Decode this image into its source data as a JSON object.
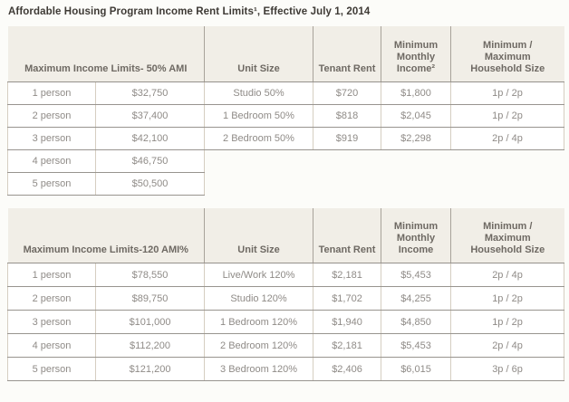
{
  "page_title": "Affordable Housing Program Income Rent Limits¹, Effective July 1, 2014",
  "colors": {
    "page_background": "#fcfcf9",
    "header_cell_background": "#f1eee7",
    "header_text": "#6e6963",
    "cell_text": "#8f8b87",
    "title_text": "#3e3a35",
    "horizontal_border": "#98948f",
    "vertical_border": "#d5cec1"
  },
  "tables": [
    {
      "name": "50-ami",
      "headers": {
        "income_limits": "Maximum Income Limits- 50% AMI",
        "unit_size": "Unit Size",
        "tenant_rent": "Tenant Rent",
        "min_monthly_income": "Minimum Monthly Income²",
        "household_size": "Minimum / Maximum Household Size"
      },
      "rows": [
        [
          "1 person",
          "$32,750",
          "Studio 50%",
          "$720",
          "$1,800",
          "1p / 2p"
        ],
        [
          "2 person",
          "$37,400",
          "1 Bedroom 50%",
          "$818",
          "$2,045",
          "1p / 2p"
        ],
        [
          "3 person",
          "$42,100",
          "2 Bedroom 50%",
          "$919",
          "$2,298",
          "2p / 4p"
        ],
        [
          "4 person",
          "$46,750",
          "",
          "",
          "",
          ""
        ],
        [
          "5 person",
          "$50,500",
          "",
          "",
          "",
          ""
        ]
      ]
    },
    {
      "name": "120-ami",
      "headers": {
        "income_limits": "Maximum Income Limits-120 AMI%",
        "unit_size": "Unit Size",
        "tenant_rent": "Tenant Rent",
        "min_monthly_income": "Minimum Monthly Income",
        "household_size": "Minimum / Maximum Household Size"
      },
      "rows": [
        [
          "1 person",
          "$78,550",
          "Live/Work 120%",
          "$2,181",
          "$5,453",
          "2p / 4p"
        ],
        [
          "2 person",
          "$89,750",
          "Studio 120%",
          "$1,702",
          "$4,255",
          "1p / 2p"
        ],
        [
          "3 person",
          "$101,000",
          "1 Bedroom 120%",
          "$1,940",
          "$4,850",
          "1p / 2p"
        ],
        [
          "4 person",
          "$112,200",
          "2 Bedroom 120%",
          "$2,181",
          "$5,453",
          "2p / 4p"
        ],
        [
          "5 person",
          "$121,200",
          "3 Bedroom 120%",
          "$2,406",
          "$6,015",
          "3p / 6p"
        ]
      ]
    }
  ]
}
